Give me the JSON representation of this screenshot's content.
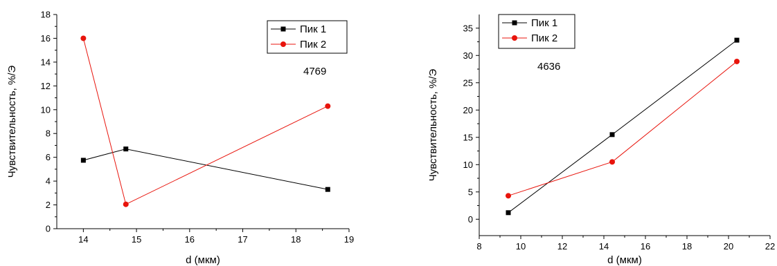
{
  "chart_data": [
    {
      "type": "line",
      "xlabel": "d (мкм)",
      "ylabel": "Чувствительность, %/Э",
      "xlim": [
        13.5,
        19
      ],
      "ylim": [
        0,
        18
      ],
      "xticks": [
        14,
        15,
        16,
        17,
        18,
        19
      ],
      "yticks": [
        0,
        2,
        4,
        6,
        8,
        10,
        12,
        14,
        16,
        18
      ],
      "legend_position": "top-right",
      "annotation": "4769",
      "series": [
        {
          "name": "Пик 1",
          "color": "#000000",
          "marker": "square",
          "x": [
            14,
            14.8,
            18.6
          ],
          "y": [
            5.75,
            6.7,
            3.3
          ]
        },
        {
          "name": "Пик 2",
          "color": "#e8140c",
          "marker": "circle",
          "x": [
            14,
            14.8,
            18.6
          ],
          "y": [
            16.0,
            2.05,
            10.3
          ]
        }
      ]
    },
    {
      "type": "line",
      "xlabel": "d (мкм)",
      "ylabel": "Чувствительность, %/Э",
      "xlim": [
        8,
        22
      ],
      "ylim": [
        -3,
        37.5
      ],
      "xticks": [
        8,
        10,
        12,
        14,
        16,
        18,
        20,
        22
      ],
      "yticks": [
        0,
        5,
        10,
        15,
        20,
        25,
        30,
        35
      ],
      "legend_position": "top-left",
      "annotation": "4636",
      "series": [
        {
          "name": "Пик 1",
          "color": "#000000",
          "marker": "square",
          "x": [
            9.4,
            14.4,
            20.4
          ],
          "y": [
            1.2,
            15.5,
            32.8
          ]
        },
        {
          "name": "Пик 2",
          "color": "#e8140c",
          "marker": "circle",
          "x": [
            9.4,
            14.4,
            20.4
          ],
          "y": [
            4.3,
            10.5,
            28.9
          ]
        }
      ]
    }
  ]
}
